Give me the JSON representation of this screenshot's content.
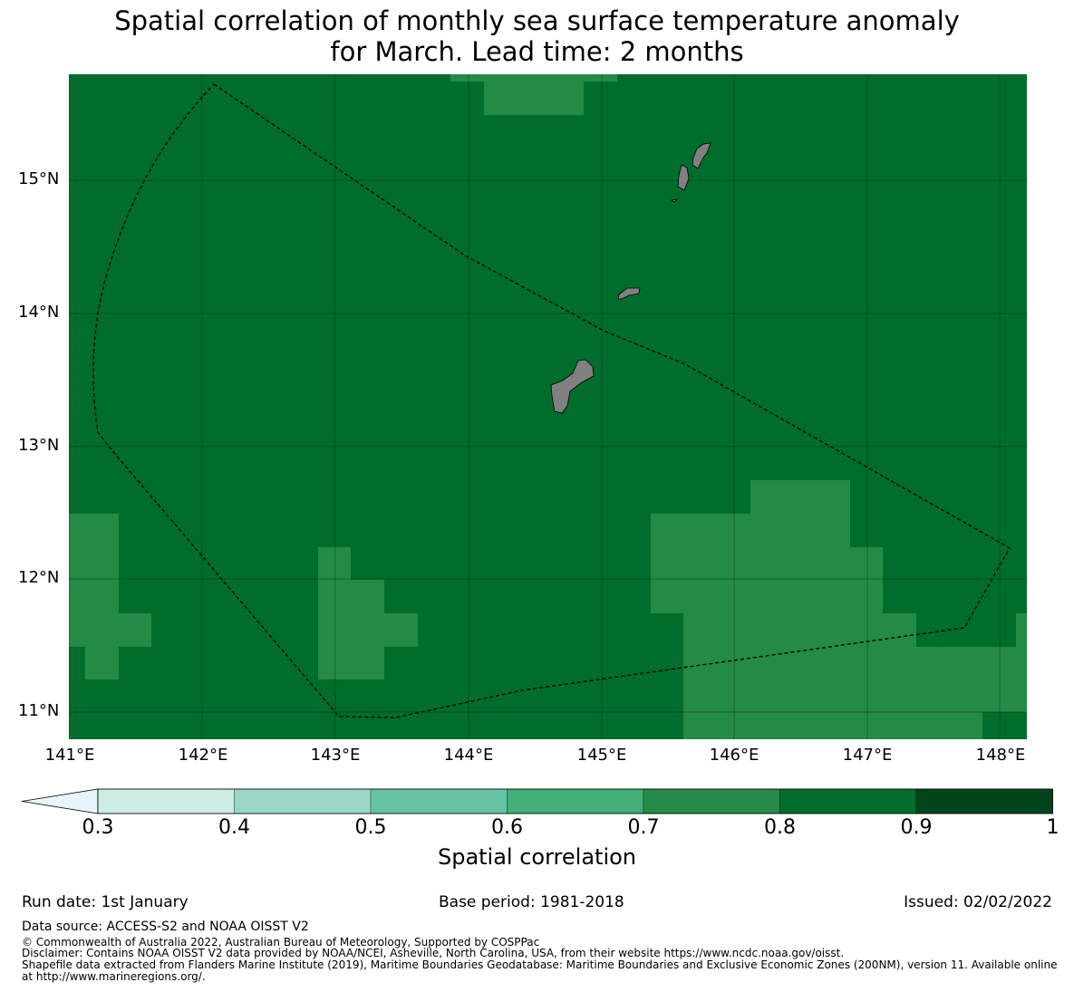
{
  "title_line1": "Spatial correlation of monthly sea surface temperature anomaly",
  "title_line2": "for March. Lead time: 2 months",
  "map": {
    "lat_labels": [
      "15°N",
      "14°N",
      "13°N",
      "12°N",
      "11°N"
    ],
    "lon_labels": [
      "141°E",
      "142°E",
      "143°E",
      "144°E",
      "145°E",
      "146°E",
      "147°E",
      "148°E"
    ],
    "colors": {
      "high": "#006d2c",
      "mid": "#238b45",
      "land": "#808080"
    }
  },
  "colorbar": {
    "ticks": [
      "0.3",
      "0.4",
      "0.5",
      "0.6",
      "0.7",
      "0.8",
      "0.9",
      "1"
    ],
    "colors": [
      "#e5f5f9",
      "#ccece6",
      "#99d8c9",
      "#66c2a4",
      "#41ae76",
      "#238b45",
      "#006d2c",
      "#00441b"
    ],
    "label": "Spatial correlation"
  },
  "footer": {
    "run_date": "Run date: 1st January",
    "base_period": "Base period: 1981-2018",
    "issued": "Issued: 02/02/2022",
    "data_source": "Data source: ACCESS-S2 and NOAA OISST V2",
    "copyright": "© Commonwealth of Australia 2022, Australian Bureau of Meteorology, Supported by COSPPac",
    "disclaimer": "Disclaimer: Contains NOAA OISST V2 data provided by NOAA/NCEI, Asheville, North Carolina, USA, from their website https://www.ncdc.noaa.gov/oisst.",
    "shapefile": "Shapefile data extracted from Flanders Marine Institute (2019), Maritime Boundaries Geodatabase: Maritime Boundaries and Exclusive Economic Zones (200NM), version 11. Available online at http://www.marineregions.org/."
  }
}
